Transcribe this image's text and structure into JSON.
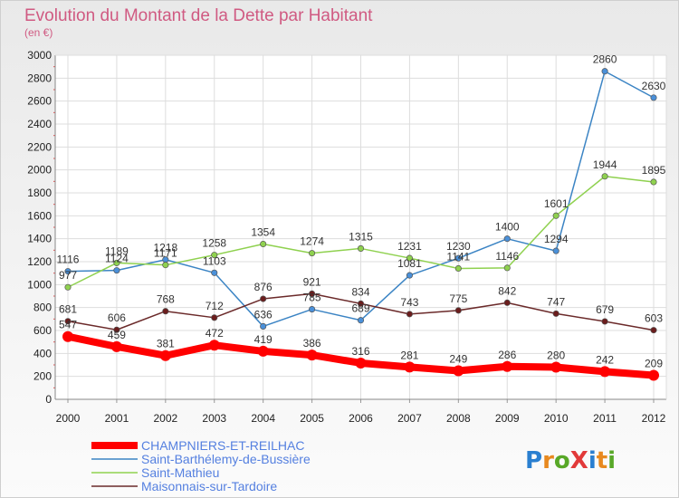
{
  "chart_data": {
    "type": "line",
    "title": "Evolution du Montant de la Dette par Habitant",
    "subtitle": "(en €)",
    "ylim": [
      0,
      3000
    ],
    "yticks": [
      0,
      200,
      400,
      600,
      800,
      1000,
      1200,
      1400,
      1600,
      1800,
      2000,
      2200,
      2400,
      2600,
      2800,
      3000
    ],
    "categories": [
      "2000",
      "2001",
      "2002",
      "2003",
      "2004",
      "2005",
      "2006",
      "2007",
      "2008",
      "2009",
      "2010",
      "2011",
      "2012"
    ],
    "grid": true,
    "legend_position": "bottom-left",
    "series": [
      {
        "name": "Saint-Barthélemy-de-Bussière",
        "color": "#3b84c4",
        "fill": "#4a90d9",
        "values": [
          1116,
          1124,
          1218,
          1103,
          636,
          785,
          689,
          1081,
          1230,
          1400,
          1294,
          2860,
          2630
        ],
        "labels": [
          "1116",
          "1124",
          "1218",
          "1103",
          "636",
          "785",
          "689",
          "1081",
          "1230",
          "1400",
          "1294",
          "2860",
          "2630"
        ]
      },
      {
        "name": "Saint-Mathieu",
        "color": "#8fd14f",
        "fill": "#8fd14f",
        "values": [
          977,
          1189,
          1171,
          1258,
          1354,
          1274,
          1315,
          1231,
          1141,
          1146,
          1601,
          1944,
          1895
        ],
        "labels": [
          "977",
          "1189",
          "1171",
          "1258",
          "1354",
          "1274",
          "1315",
          "1231",
          "1141",
          "1146",
          "1601",
          "1944",
          "1895"
        ]
      },
      {
        "name": "Maisonnais-sur-Tardoire",
        "color": "#6b2a2a",
        "fill": "#6b1d1d",
        "values": [
          681,
          606,
          768,
          712,
          876,
          921,
          834,
          743,
          775,
          842,
          747,
          679,
          603
        ],
        "labels": [
          "681",
          "606",
          "768",
          "712",
          "876",
          "921",
          "834",
          "743",
          "775",
          "842",
          "747",
          "679",
          "603"
        ]
      },
      {
        "name": "CHAMPNIERS-ET-REILHAC",
        "color": "#ff0000",
        "fill": "#ff0000",
        "values": [
          547,
          459,
          381,
          472,
          419,
          386,
          316,
          281,
          249,
          286,
          280,
          242,
          209
        ],
        "labels": [
          "547",
          "459",
          "381",
          "472",
          "419",
          "386",
          "316",
          "281",
          "249",
          "286",
          "280",
          "242",
          "209"
        ]
      }
    ]
  },
  "legend_order": [
    "CHAMPNIERS-ET-REILHAC",
    "Saint-Barthélemy-de-Bussière",
    "Saint-Mathieu",
    "Maisonnais-sur-Tardoire"
  ],
  "logo": {
    "text": "ProXiti",
    "colors": [
      "#2a7fd0",
      "#e8891f",
      "#58a828",
      "#e23a3a",
      "#2a7fd0",
      "#e8891f",
      "#58a828"
    ]
  }
}
